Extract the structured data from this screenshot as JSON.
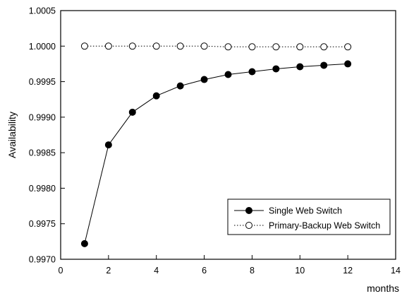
{
  "chart_data": {
    "type": "line",
    "title": "",
    "xlabel": "months",
    "ylabel": "Availability",
    "xlim": [
      0,
      14
    ],
    "ylim": [
      0.997,
      1.0005
    ],
    "x_ticks": [
      "0",
      "2",
      "4",
      "6",
      "8",
      "10",
      "12",
      "14"
    ],
    "y_ticks": [
      "0.9970",
      "0.9975",
      "0.9980",
      "0.9985",
      "0.9990",
      "0.9995",
      "1.0000",
      "1.0005"
    ],
    "grid": false,
    "legend_position": "bottom-right",
    "x": [
      1,
      2,
      3,
      4,
      5,
      6,
      7,
      8,
      9,
      10,
      11,
      12
    ],
    "series": [
      {
        "name": "Single Web Switch",
        "marker": "filled-circle",
        "line_style": "solid",
        "values": [
          0.99722,
          0.99861,
          0.99907,
          0.9993,
          0.99944,
          0.99953,
          0.9996,
          0.99964,
          0.99968,
          0.99971,
          0.99973,
          0.99975
        ]
      },
      {
        "name": "Primary-Backup Web Switch",
        "marker": "open-circle",
        "line_style": "dotted",
        "values": [
          1.0,
          1.0,
          1.0,
          1.0,
          1.0,
          1.0,
          0.99999,
          0.99999,
          0.99999,
          0.99999,
          0.99999,
          0.99999
        ]
      }
    ]
  }
}
